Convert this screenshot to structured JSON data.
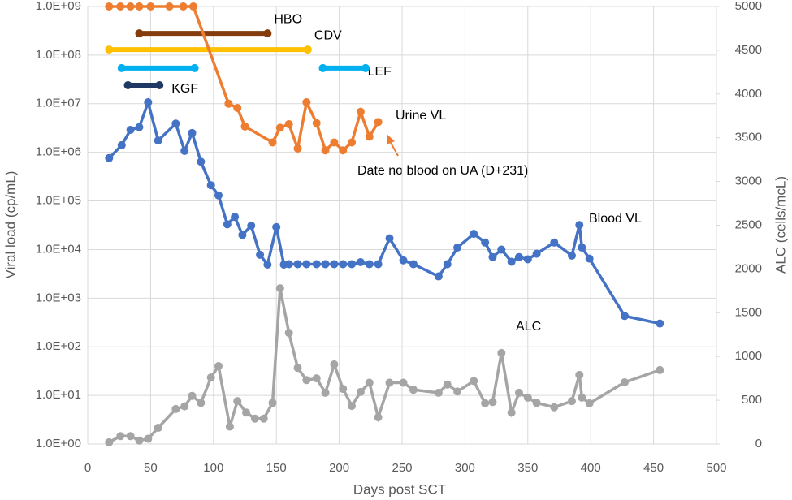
{
  "chart_data": {
    "type": "line",
    "x_label": "Days post SCT",
    "y_label": "Viral load (cp/mL)",
    "y2_label": "ALC (cells/mcL)",
    "xlim": [
      0,
      500
    ],
    "xticks": [
      0,
      50,
      100,
      150,
      200,
      250,
      300,
      350,
      400,
      450,
      500
    ],
    "ylim": [
      1,
      1000000000
    ],
    "log_y": true,
    "grid": true,
    "yticks": [
      {
        "value": 1,
        "label": "1.0E+00"
      },
      {
        "value": 10,
        "label": "1.0E+01"
      },
      {
        "value": 100,
        "label": "1.0E+02"
      },
      {
        "value": 1000,
        "label": "1.0E+03"
      },
      {
        "value": 10000,
        "label": "1.0E+04"
      },
      {
        "value": 100000,
        "label": "1.0E+05"
      },
      {
        "value": 1000000,
        "label": "1.0E+06"
      },
      {
        "value": 10000000,
        "label": "1.0E+07"
      },
      {
        "value": 100000000,
        "label": "1.0E+08"
      },
      {
        "value": 1000000000,
        "label": "1.0E+09"
      }
    ],
    "y2lim": [
      0,
      5000
    ],
    "y2ticks": [
      0,
      500,
      1000,
      1500,
      2000,
      2500,
      3000,
      3500,
      4000,
      4500,
      5000
    ],
    "series": [
      {
        "name": "Urine VL",
        "color": "#ed7d31",
        "x": [
          17,
          26,
          34,
          41,
          50,
          65,
          76,
          84,
          112,
          119,
          125,
          147,
          153,
          160,
          167,
          174,
          182,
          189,
          196,
          203,
          210,
          217,
          224,
          231
        ],
        "values": [
          1000000000,
          1000000000,
          1000000000,
          1000000000,
          1000000000,
          1000000000,
          1000000000,
          1000000000,
          10000000,
          8200000,
          3400000,
          1600000,
          3200000,
          3800000,
          1200000,
          10700000,
          4000000,
          1100000,
          1600000,
          1100000,
          1600000,
          6800000,
          2100000,
          4200000
        ]
      },
      {
        "name": "Blood VL",
        "color": "#4472c4",
        "x": [
          17,
          27,
          34,
          41,
          48,
          56,
          70,
          77,
          83,
          90,
          98,
          104,
          111,
          117,
          123,
          130,
          137,
          143,
          150,
          156,
          160,
          167,
          174,
          182,
          189,
          196,
          203,
          210,
          217,
          224,
          231,
          240,
          251,
          259,
          279,
          286,
          294,
          307,
          316,
          322,
          329,
          337,
          343,
          350,
          357,
          371,
          385,
          391,
          393,
          399,
          427,
          455
        ],
        "values": [
          760000,
          1400000,
          2900000,
          3300000,
          10700000,
          1750000,
          3900000,
          1070000,
          2500000,
          640000,
          210000,
          130000,
          33000,
          47000,
          20000,
          31000,
          7800,
          4900,
          29000,
          4900,
          5000,
          5000,
          5000,
          5000,
          5000,
          5000,
          5000,
          5000,
          5500,
          5000,
          5000,
          17000,
          6000,
          5000,
          2800,
          5000,
          11000,
          21000,
          14000,
          7000,
          10000,
          5600,
          7000,
          6300,
          8200,
          14000,
          7500,
          32000,
          11000,
          6500,
          430,
          300
        ]
      },
      {
        "name": "ALC",
        "color": "#a5a5a5",
        "axis": "y2",
        "x": [
          17,
          26,
          34,
          41,
          48,
          56,
          70,
          77,
          83,
          90,
          98,
          104,
          113,
          119,
          126,
          133,
          140,
          147,
          153,
          160,
          167,
          174,
          182,
          189,
          196,
          203,
          210,
          217,
          224,
          231,
          240,
          251,
          259,
          279,
          286,
          294,
          307,
          316,
          322,
          329,
          337,
          343,
          350,
          357,
          371,
          385,
          391,
          393,
          399,
          427,
          455
        ],
        "values": [
          20,
          90,
          90,
          40,
          60,
          185,
          400,
          430,
          550,
          470,
          760,
          890,
          200,
          490,
          360,
          290,
          290,
          470,
          1780,
          1270,
          870,
          730,
          750,
          585,
          910,
          630,
          435,
          595,
          700,
          305,
          700,
          700,
          620,
          585,
          680,
          600,
          720,
          465,
          480,
          1040,
          360,
          585,
          530,
          470,
          420,
          490,
          790,
          530,
          465,
          705,
          845
        ]
      }
    ],
    "ranges": [
      {
        "name": "HBO",
        "color": "#843c0c",
        "start": 41,
        "end": 143,
        "value": 280000000
      },
      {
        "name": "CDV",
        "color": "#ffc000",
        "start": 17,
        "end": 175,
        "value": 130000000
      },
      {
        "name": "LEF",
        "color": "#00b0f0",
        "start": 27,
        "end": 85,
        "value": 54000000
      },
      {
        "name": "LEF",
        "color": "#00b0f0",
        "start": 187,
        "end": 221,
        "value": 54000000
      },
      {
        "name": "KGF",
        "color": "#203864",
        "start": 32,
        "end": 57,
        "value": 24000000
      }
    ],
    "annotation": "Date no blood on UA (D+231)"
  }
}
